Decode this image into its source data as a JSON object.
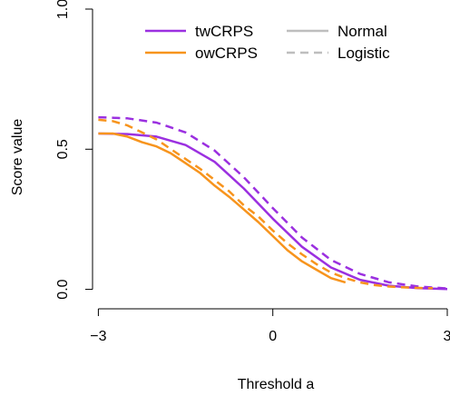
{
  "chart_data": {
    "type": "line",
    "xlabel": "Threshold a",
    "ylabel": "Score value",
    "xlim": [
      -3.1,
      3.0
    ],
    "ylim": [
      -0.05,
      1.0
    ],
    "x_ticks": [
      {
        "value": -3,
        "label": "−3"
      },
      {
        "value": 0,
        "label": "0"
      },
      {
        "value": 3,
        "label": "3"
      }
    ],
    "y_ticks": [
      {
        "value": 0.0,
        "label": "0.0"
      },
      {
        "value": 0.5,
        "label": "0.5"
      },
      {
        "value": 1.0,
        "label": "1.0"
      }
    ],
    "grid": false,
    "legend": {
      "placement": "top-center",
      "score_entries": [
        {
          "label": "twCRPS",
          "color": "#9b30e0"
        },
        {
          "label": "owCRPS",
          "color": "#f7941d"
        }
      ],
      "dist_entries": [
        {
          "label": "Normal",
          "style": "solid",
          "color": "#bebebe"
        },
        {
          "label": "Logistic",
          "style": "dashed",
          "color": "#bebebe"
        }
      ]
    },
    "series": [
      {
        "score": "twCRPS",
        "distribution": "Normal",
        "color": "#9b30e0",
        "dash": "solid",
        "x": [
          -3,
          -2.5,
          -2,
          -1.5,
          -1,
          -0.5,
          0,
          0.5,
          1,
          1.5,
          2,
          2.5,
          3
        ],
        "y": [
          0.556,
          0.554,
          0.545,
          0.515,
          0.455,
          0.36,
          0.252,
          0.152,
          0.078,
          0.034,
          0.013,
          0.004,
          0.001
        ]
      },
      {
        "score": "twCRPS",
        "distribution": "Logistic",
        "color": "#9b30e0",
        "dash": "dashed",
        "x": [
          -3,
          -2.5,
          -2,
          -1.5,
          -1,
          -0.5,
          0,
          0.5,
          1,
          1.5,
          2,
          2.5,
          3
        ],
        "y": [
          0.614,
          0.61,
          0.595,
          0.56,
          0.495,
          0.4,
          0.29,
          0.185,
          0.105,
          0.055,
          0.025,
          0.01,
          0.003
        ]
      },
      {
        "score": "owCRPS",
        "distribution": "Normal",
        "color": "#f7941d",
        "dash": "solid",
        "x": [
          -3,
          -2.75,
          -2.5,
          -2.25,
          -2,
          -1.75,
          -1.5,
          -1.25,
          -1,
          -0.75,
          -0.5,
          -0.25,
          0,
          0.25,
          0.5,
          0.75,
          1,
          1.25
        ],
        "y": [
          0.556,
          0.556,
          0.545,
          0.525,
          0.51,
          0.485,
          0.45,
          0.415,
          0.37,
          0.33,
          0.285,
          0.24,
          0.19,
          0.14,
          0.1,
          0.07,
          0.04,
          0.025
        ]
      },
      {
        "score": "owCRPS",
        "distribution": "Logistic",
        "color": "#f7941d",
        "dash": "dashed",
        "x": [
          -3,
          -2.75,
          -2.5,
          -2.25,
          -2,
          -1.75,
          -1.5,
          -1.25,
          -1,
          -0.75,
          -0.5,
          -0.25,
          0,
          0.25,
          0.5,
          0.75,
          1,
          1.25,
          1.5,
          1.75,
          2,
          2.25,
          2.5,
          2.75
        ],
        "y": [
          0.605,
          0.6,
          0.585,
          0.56,
          0.535,
          0.5,
          0.465,
          0.43,
          0.39,
          0.35,
          0.3,
          0.26,
          0.21,
          0.165,
          0.125,
          0.09,
          0.06,
          0.04,
          0.025,
          0.015,
          0.01,
          0.007,
          0.005,
          0.004
        ]
      }
    ]
  }
}
